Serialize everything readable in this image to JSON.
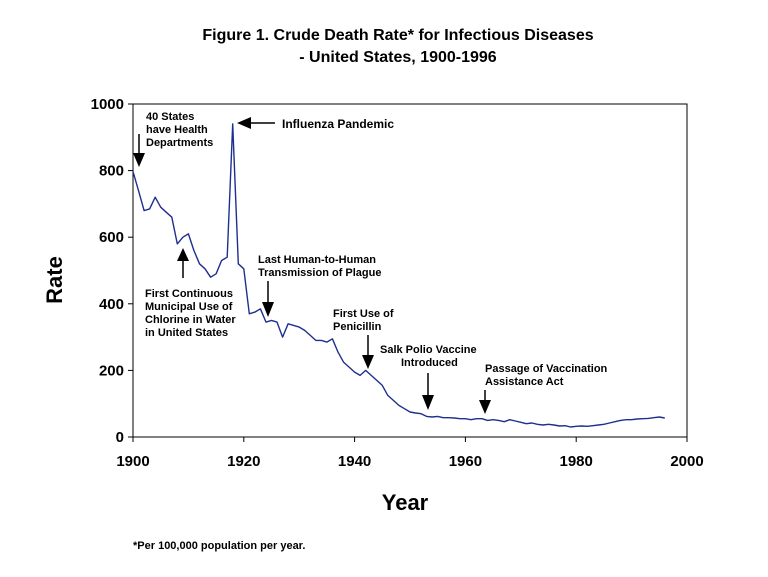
{
  "chart_data": {
    "type": "line",
    "title": [
      "Figure 1. Crude Death Rate* for Infectious Diseases",
      "- United States, 1900-1996"
    ],
    "xlabel": "Year",
    "ylabel": "Rate",
    "xlim": [
      1900,
      2000
    ],
    "ylim": [
      0,
      1000
    ],
    "xticks": [
      1900,
      1920,
      1940,
      1960,
      1980,
      2000
    ],
    "yticks": [
      0,
      200,
      400,
      600,
      800,
      1000
    ],
    "grid": false,
    "line_color": "#1f2f8f",
    "footnote": "*Per 100,000 population per year.",
    "series": [
      {
        "x": [
          1900,
          1901,
          1902,
          1903,
          1904,
          1905,
          1906,
          1907,
          1908,
          1909,
          1910,
          1911,
          1912,
          1913,
          1914,
          1915,
          1916,
          1917,
          1918,
          1919,
          1920,
          1921,
          1922,
          1923,
          1924,
          1925,
          1926,
          1927,
          1928,
          1929,
          1930,
          1931,
          1932,
          1933,
          1934,
          1935,
          1936,
          1937,
          1938,
          1939,
          1940,
          1941,
          1942,
          1943,
          1944,
          1945,
          1946,
          1947,
          1948,
          1949,
          1950,
          1951,
          1952,
          1953,
          1954,
          1955,
          1956,
          1957,
          1958,
          1959,
          1960,
          1961,
          1962,
          1963,
          1964,
          1965,
          1966,
          1967,
          1968,
          1969,
          1970,
          1971,
          1972,
          1973,
          1974,
          1975,
          1976,
          1977,
          1978,
          1979,
          1980,
          1981,
          1982,
          1983,
          1984,
          1985,
          1986,
          1987,
          1988,
          1989,
          1990,
          1991,
          1992,
          1993,
          1994,
          1995,
          1996
        ],
        "y": [
          797,
          740,
          680,
          685,
          720,
          690,
          675,
          660,
          580,
          600,
          610,
          560,
          520,
          505,
          480,
          490,
          530,
          540,
          940,
          520,
          505,
          370,
          375,
          385,
          345,
          350,
          345,
          300,
          340,
          335,
          330,
          320,
          305,
          290,
          290,
          285,
          295,
          255,
          225,
          210,
          195,
          185,
          200,
          185,
          170,
          155,
          125,
          110,
          95,
          85,
          75,
          72,
          70,
          62,
          60,
          62,
          58,
          58,
          57,
          55,
          55,
          52,
          55,
          55,
          50,
          52,
          50,
          46,
          52,
          48,
          44,
          40,
          42,
          38,
          36,
          38,
          36,
          33,
          34,
          30,
          32,
          33,
          32,
          34,
          36,
          38,
          42,
          46,
          50,
          52,
          52,
          54,
          55,
          56,
          58,
          60,
          57
        ]
      }
    ],
    "annotations": [
      {
        "lines": [
          "40 States",
          "have Health",
          "Departments"
        ],
        "year": 1900.5,
        "arrow_dir": "down"
      },
      {
        "lines": [
          "Influenza Pandemic"
        ],
        "year": 1918,
        "arrow_dir": "left"
      },
      {
        "lines": [
          "First Continuous",
          "Municipal Use of",
          "Chlorine in Water",
          "in United States"
        ],
        "year": 1908.5,
        "arrow_dir": "up"
      },
      {
        "lines": [
          "Last Human-to-Human",
          "Transmission of Plague"
        ],
        "year": 1924.5,
        "arrow_dir": "down"
      },
      {
        "lines": [
          "First Use of",
          "Penicillin"
        ],
        "year": 1942.5,
        "arrow_dir": "down"
      },
      {
        "lines": [
          "Salk Polio Vaccine",
          "Introduced"
        ],
        "year": 1953.5,
        "arrow_dir": "down"
      },
      {
        "lines": [
          "Passage of Vaccination",
          "Assistance Act"
        ],
        "year": 1963.5,
        "arrow_dir": "down"
      }
    ]
  }
}
